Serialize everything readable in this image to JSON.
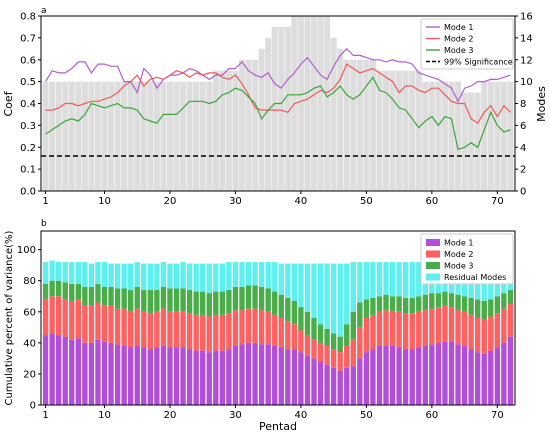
{
  "chart_data": [
    {
      "panel_label": "a",
      "type": "line",
      "xlabel": "",
      "ylabel": "Coef",
      "y2label": "Modes",
      "xlim": [
        1,
        72
      ],
      "ylim": [
        0,
        0.8
      ],
      "y2lim": [
        0,
        16
      ],
      "xticks": [
        1,
        10,
        20,
        30,
        40,
        50,
        60,
        70
      ],
      "yticks": [
        0.0,
        0.1,
        0.2,
        0.3,
        0.4,
        0.5,
        0.6,
        0.7,
        0.8
      ],
      "y2ticks": [
        0,
        2,
        4,
        6,
        8,
        10,
        12,
        14,
        16
      ],
      "legend_position": "top-right",
      "modes_bars": {
        "axis": "right",
        "color": "#dddddd",
        "x": [
          1,
          2,
          3,
          4,
          5,
          6,
          7,
          8,
          9,
          10,
          11,
          12,
          13,
          14,
          15,
          16,
          17,
          18,
          19,
          20,
          21,
          22,
          23,
          24,
          25,
          26,
          27,
          28,
          29,
          30,
          31,
          32,
          33,
          34,
          35,
          36,
          37,
          38,
          39,
          40,
          41,
          42,
          43,
          44,
          45,
          46,
          47,
          48,
          49,
          50,
          51,
          52,
          53,
          54,
          55,
          56,
          57,
          58,
          59,
          60,
          61,
          62,
          63,
          64,
          65,
          66,
          67,
          68,
          69,
          70,
          71,
          72
        ],
        "values": [
          10,
          10,
          10,
          10,
          10,
          10,
          10,
          10,
          10,
          10,
          10,
          10,
          10,
          10,
          10,
          10,
          10,
          10,
          10,
          10,
          10,
          10,
          10,
          10,
          10,
          10,
          11,
          11,
          11,
          11,
          12,
          12,
          12,
          13,
          14,
          15,
          15,
          15,
          16,
          16,
          16,
          16,
          16,
          16,
          14,
          13,
          12,
          12,
          12,
          12,
          12,
          11,
          11,
          11,
          11,
          11,
          11,
          11,
          10,
          10,
          10,
          10,
          10,
          10,
          9,
          9,
          9,
          10,
          10,
          10,
          10,
          10
        ]
      },
      "series": [
        {
          "name": "Mode 1",
          "color": "#b05fcf",
          "values": [
            0.5,
            0.55,
            0.54,
            0.54,
            0.56,
            0.59,
            0.59,
            0.54,
            0.58,
            0.58,
            0.57,
            0.57,
            0.5,
            0.5,
            0.45,
            0.56,
            0.53,
            0.47,
            0.51,
            0.53,
            0.53,
            0.54,
            0.56,
            0.55,
            0.53,
            0.51,
            0.53,
            0.53,
            0.56,
            0.56,
            0.59,
            0.55,
            0.53,
            0.52,
            0.54,
            0.49,
            0.47,
            0.51,
            0.54,
            0.58,
            0.61,
            0.57,
            0.53,
            0.51,
            0.57,
            0.62,
            0.65,
            0.62,
            0.62,
            0.61,
            0.6,
            0.6,
            0.59,
            0.6,
            0.59,
            0.59,
            0.58,
            0.54,
            0.53,
            0.52,
            0.51,
            0.49,
            0.47,
            0.41,
            0.47,
            0.48,
            0.5,
            0.5,
            0.51,
            0.51,
            0.52,
            0.53
          ]
        },
        {
          "name": "Mode 2",
          "color": "#f05a5a",
          "values": [
            0.37,
            0.37,
            0.38,
            0.4,
            0.4,
            0.39,
            0.4,
            0.41,
            0.41,
            0.42,
            0.43,
            0.45,
            0.48,
            0.5,
            0.53,
            0.48,
            0.51,
            0.52,
            0.51,
            0.53,
            0.55,
            0.54,
            0.52,
            0.54,
            0.53,
            0.54,
            0.54,
            0.52,
            0.51,
            0.53,
            0.49,
            0.44,
            0.38,
            0.37,
            0.37,
            0.37,
            0.37,
            0.36,
            0.4,
            0.41,
            0.42,
            0.44,
            0.46,
            0.45,
            0.47,
            0.51,
            0.58,
            0.56,
            0.54,
            0.55,
            0.56,
            0.54,
            0.52,
            0.5,
            0.45,
            0.48,
            0.48,
            0.46,
            0.45,
            0.47,
            0.47,
            0.44,
            0.41,
            0.4,
            0.4,
            0.33,
            0.31,
            0.36,
            0.39,
            0.34,
            0.39,
            0.36
          ]
        },
        {
          "name": "Mode 3",
          "color": "#3aa63a",
          "values": [
            0.26,
            0.28,
            0.3,
            0.32,
            0.33,
            0.32,
            0.35,
            0.4,
            0.39,
            0.38,
            0.39,
            0.4,
            0.38,
            0.38,
            0.37,
            0.33,
            0.32,
            0.31,
            0.35,
            0.35,
            0.35,
            0.38,
            0.41,
            0.41,
            0.41,
            0.4,
            0.41,
            0.44,
            0.45,
            0.47,
            0.46,
            0.43,
            0.4,
            0.33,
            0.37,
            0.4,
            0.4,
            0.44,
            0.44,
            0.44,
            0.45,
            0.47,
            0.48,
            0.43,
            0.45,
            0.48,
            0.44,
            0.42,
            0.44,
            0.48,
            0.52,
            0.46,
            0.45,
            0.42,
            0.38,
            0.37,
            0.33,
            0.29,
            0.32,
            0.34,
            0.3,
            0.34,
            0.33,
            0.19,
            0.2,
            0.22,
            0.2,
            0.28,
            0.36,
            0.3,
            0.27,
            0.28
          ]
        }
      ],
      "reference_line": {
        "name": "99% Significance",
        "value": 0.16,
        "color": "#000000",
        "style": "dashed"
      }
    },
    {
      "panel_label": "b",
      "type": "bar",
      "stacked": true,
      "xlabel": "Pentad",
      "ylabel": "Cumulative percent of variance(%)",
      "xlim": [
        1,
        72
      ],
      "ylim": [
        0,
        100
      ],
      "xticks": [
        1,
        10,
        20,
        30,
        40,
        50,
        60,
        70
      ],
      "yticks": [
        0,
        20,
        40,
        60,
        80,
        100
      ],
      "legend_position": "top-right",
      "x": [
        1,
        2,
        3,
        4,
        5,
        6,
        7,
        8,
        9,
        10,
        11,
        12,
        13,
        14,
        15,
        16,
        17,
        18,
        19,
        20,
        21,
        22,
        23,
        24,
        25,
        26,
        27,
        28,
        29,
        30,
        31,
        32,
        33,
        34,
        35,
        36,
        37,
        38,
        39,
        40,
        41,
        42,
        43,
        44,
        45,
        46,
        47,
        48,
        49,
        50,
        51,
        52,
        53,
        54,
        55,
        56,
        57,
        58,
        59,
        60,
        61,
        62,
        63,
        64,
        65,
        66,
        67,
        68,
        69,
        70,
        71,
        72
      ],
      "cumulative_series": [
        {
          "name": "Mode 1",
          "color": "#b24fd8",
          "values": [
            45,
            46,
            45,
            44,
            42,
            43,
            40,
            40,
            42,
            41,
            40,
            39,
            38,
            37,
            38,
            37,
            36,
            37,
            38,
            37,
            37,
            37,
            36,
            35,
            35,
            34,
            35,
            35,
            36,
            38,
            39,
            40,
            40,
            39,
            39,
            38,
            37,
            36,
            36,
            34,
            32,
            30,
            28,
            26,
            24,
            22,
            24,
            25,
            30,
            34,
            36,
            38,
            38,
            38,
            37,
            36,
            36,
            37,
            38,
            39,
            40,
            41,
            41,
            39,
            38,
            36,
            34,
            33,
            35,
            37,
            40,
            44
          ]
        },
        {
          "name": "Mode 2",
          "color": "#ff6161",
          "values": [
            68,
            70,
            70,
            68,
            67,
            68,
            64,
            64,
            66,
            64,
            64,
            62,
            62,
            60,
            62,
            60,
            59,
            60,
            62,
            60,
            60,
            60,
            59,
            58,
            58,
            57,
            58,
            58,
            59,
            61,
            61,
            62,
            62,
            61,
            60,
            58,
            56,
            54,
            52,
            48,
            45,
            42,
            40,
            38,
            36,
            34,
            38,
            42,
            50,
            56,
            58,
            60,
            61,
            60,
            60,
            59,
            59,
            60,
            61,
            62,
            63,
            64,
            63,
            61,
            60,
            58,
            56,
            55,
            57,
            59,
            62,
            65
          ]
        },
        {
          "name": "Mode 3",
          "color": "#4aad4a",
          "values": [
            78,
            80,
            80,
            79,
            78,
            78,
            76,
            76,
            78,
            76,
            76,
            75,
            75,
            74,
            76,
            74,
            74,
            74,
            76,
            75,
            75,
            75,
            74,
            73,
            73,
            72,
            73,
            73,
            74,
            76,
            76,
            77,
            77,
            76,
            75,
            73,
            71,
            69,
            67,
            63,
            60,
            56,
            52,
            49,
            46,
            44,
            52,
            60,
            66,
            68,
            69,
            70,
            71,
            70,
            70,
            69,
            69,
            70,
            71,
            72,
            72,
            73,
            72,
            71,
            70,
            69,
            68,
            67,
            68,
            70,
            72,
            74
          ]
        },
        {
          "name": "Residual Modes",
          "color": "#5ef0ee",
          "values": [
            92,
            93,
            92,
            92,
            92,
            92,
            92,
            91,
            92,
            92,
            91,
            91,
            91,
            91,
            92,
            91,
            91,
            91,
            92,
            91,
            91,
            92,
            91,
            91,
            91,
            91,
            91,
            91,
            92,
            92,
            92,
            92,
            92,
            92,
            92,
            92,
            91,
            91,
            91,
            91,
            91,
            91,
            91,
            91,
            91,
            91,
            91,
            92,
            92,
            92,
            92,
            92,
            92,
            92,
            92,
            92,
            92,
            92,
            92,
            92,
            92,
            92,
            92,
            92,
            91,
            91,
            90,
            90,
            91,
            91,
            92,
            92
          ]
        }
      ]
    }
  ]
}
